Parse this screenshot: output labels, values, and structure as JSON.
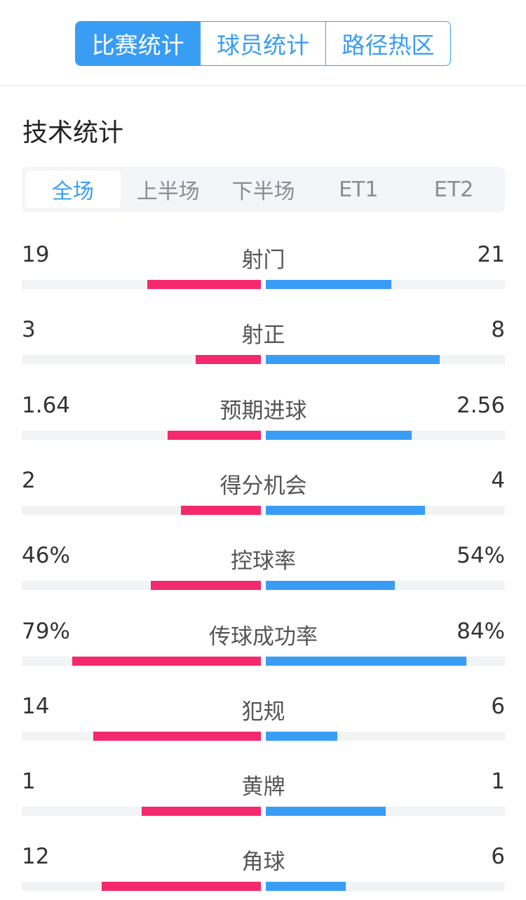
{
  "tabs": [
    {
      "label": "比赛统计",
      "active": true
    },
    {
      "label": "球员统计"
    },
    {
      "label": "路径热区"
    }
  ],
  "section_title": "技术统计",
  "periods": [
    {
      "label": "全场",
      "active": true
    },
    {
      "label": "上半场"
    },
    {
      "label": "下半场"
    },
    {
      "label": "ET1"
    },
    {
      "label": "ET2"
    }
  ],
  "colors": {
    "home": "#f5296e",
    "away": "#3a9df5",
    "accent": "#3a9df5"
  },
  "stats": [
    {
      "name": "射门",
      "home": "19",
      "away": "21",
      "home_fill": 0.475,
      "away_fill": 0.525
    },
    {
      "name": "射正",
      "home": "3",
      "away": "8",
      "home_fill": 0.273,
      "away_fill": 0.727
    },
    {
      "name": "预期进球",
      "home": "1.64",
      "away": "2.56",
      "home_fill": 0.39,
      "away_fill": 0.61
    },
    {
      "name": "得分机会",
      "home": "2",
      "away": "4",
      "home_fill": 0.333,
      "away_fill": 0.667
    },
    {
      "name": "控球率",
      "home": "46%",
      "away": "54%",
      "home_fill": 0.46,
      "away_fill": 0.54
    },
    {
      "name": "传球成功率",
      "home": "79%",
      "away": "84%",
      "home_fill": 0.79,
      "away_fill": 0.84
    },
    {
      "name": "犯规",
      "home": "14",
      "away": "6",
      "home_fill": 0.7,
      "away_fill": 0.3
    },
    {
      "name": "黄牌",
      "home": "1",
      "away": "1",
      "home_fill": 0.5,
      "away_fill": 0.5
    },
    {
      "name": "角球",
      "home": "12",
      "away": "6",
      "home_fill": 0.667,
      "away_fill": 0.333
    }
  ]
}
